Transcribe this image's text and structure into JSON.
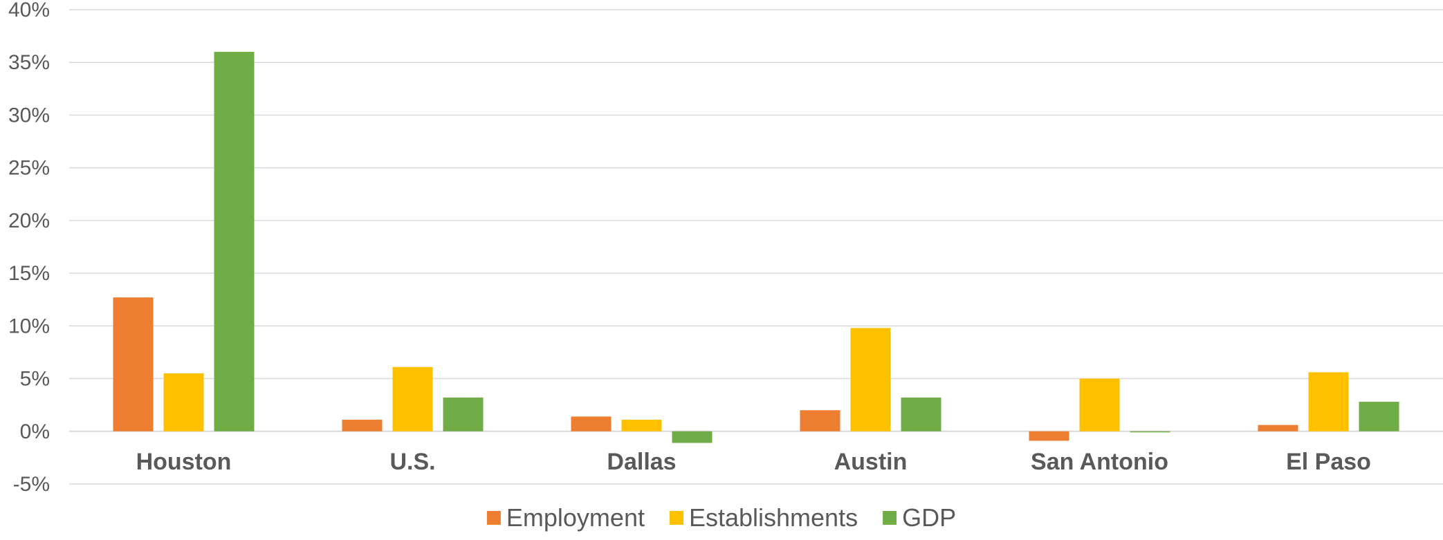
{
  "chart_data": {
    "type": "bar",
    "categories": [
      "Houston",
      "U.S.",
      "Dallas",
      "Austin",
      "San Antonio",
      "El Paso"
    ],
    "series": [
      {
        "name": "Employment",
        "color": "#ed7d31",
        "values": [
          12.7,
          1.1,
          1.4,
          2.0,
          -0.9,
          0.6
        ]
      },
      {
        "name": "Establishments",
        "color": "#ffc000",
        "values": [
          5.5,
          6.1,
          1.1,
          9.8,
          5.0,
          5.6
        ]
      },
      {
        "name": "GDP",
        "color": "#70ad47",
        "values": [
          36.0,
          3.2,
          -1.1,
          3.2,
          -0.1,
          2.8
        ]
      }
    ],
    "ylim": [
      -5,
      40
    ],
    "yticks": [
      -5,
      0,
      5,
      10,
      15,
      20,
      25,
      30,
      35,
      40
    ],
    "ytick_format": "percent",
    "grid": true,
    "legend_position": "bottom"
  }
}
